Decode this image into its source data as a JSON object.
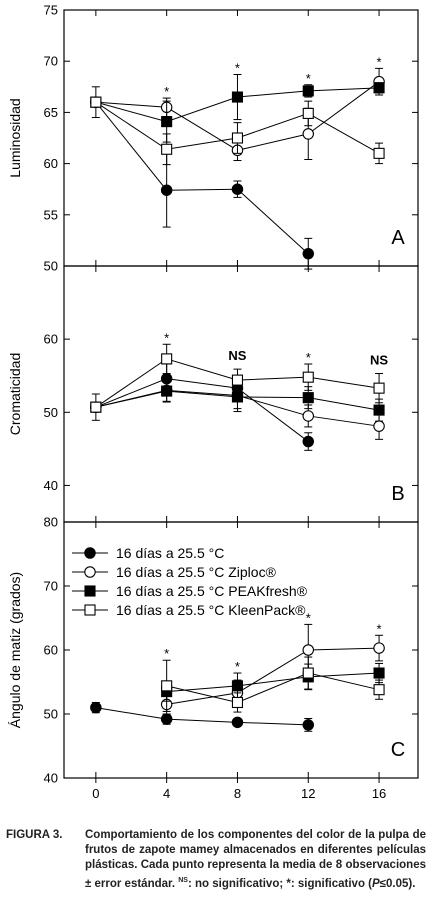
{
  "chart_data": [
    {
      "type": "line",
      "panel_letter": "A",
      "ylabel": "Luminosidad",
      "ylim": [
        50,
        75
      ],
      "yticks": [
        50,
        55,
        60,
        65,
        70,
        75
      ],
      "x": [
        0,
        4,
        8,
        12,
        16
      ],
      "markers": [
        {
          "x": 4,
          "text": "*"
        },
        {
          "x": 8,
          "text": "*"
        },
        {
          "x": 12,
          "text": "*"
        },
        {
          "x": 16,
          "text": "*"
        }
      ],
      "series": [
        {
          "name": "16 días a 25.5 °C",
          "marker": "filled-circle",
          "points": [
            {
              "x": 0,
              "y": 66.0,
              "err": 0
            },
            {
              "x": 4,
              "y": 57.4,
              "err": 3.6
            },
            {
              "x": 8,
              "y": 57.5,
              "err": 0.8
            },
            {
              "x": 12,
              "y": 51.2,
              "err": 1.5
            }
          ]
        },
        {
          "name": "16 días a 25.5 °C Ziploc®",
          "marker": "open-circle",
          "points": [
            {
              "x": 0,
              "y": 66.0,
              "err": 0
            },
            {
              "x": 4,
              "y": 65.5,
              "err": 0.9
            },
            {
              "x": 8,
              "y": 61.3,
              "err": 1.0
            },
            {
              "x": 12,
              "y": 62.9,
              "err": 2.5
            },
            {
              "x": 16,
              "y": 68.0,
              "err": 1.3
            }
          ]
        },
        {
          "name": "16 días a 25.5 °C PEAKfresh®",
          "marker": "filled-square",
          "points": [
            {
              "x": 0,
              "y": 66.0,
              "err": 1.5
            },
            {
              "x": 4,
              "y": 64.1,
              "err": 2.0
            },
            {
              "x": 8,
              "y": 66.5,
              "err": 2.2
            },
            {
              "x": 12,
              "y": 67.1,
              "err": 0.6
            },
            {
              "x": 16,
              "y": 67.4,
              "err": 0.5
            }
          ]
        },
        {
          "name": "16 días a 25.5 °C KleenPack®",
          "marker": "open-square",
          "points": [
            {
              "x": 0,
              "y": 66.0,
              "err": 0
            },
            {
              "x": 4,
              "y": 61.4,
              "err": 1.5
            },
            {
              "x": 8,
              "y": 62.5,
              "err": 1.5
            },
            {
              "x": 12,
              "y": 64.9,
              "err": 1.2
            },
            {
              "x": 16,
              "y": 61.0,
              "err": 1.0
            }
          ]
        }
      ]
    },
    {
      "type": "line",
      "panel_letter": "B",
      "ylabel": "Cromaticidad",
      "ylim": [
        35,
        70
      ],
      "yticks": [
        40,
        50,
        60
      ],
      "x": [
        0,
        4,
        8,
        12,
        16
      ],
      "markers": [
        {
          "x": 4,
          "text": "*"
        },
        {
          "x": 8,
          "text": "NS"
        },
        {
          "x": 12,
          "text": "*"
        },
        {
          "x": 16,
          "text": "NS"
        }
      ],
      "series": [
        {
          "name": "16 días a 25.5 °C",
          "marker": "filled-circle",
          "points": [
            {
              "x": 0,
              "y": 50.7,
              "err": 1.8
            },
            {
              "x": 4,
              "y": 54.6,
              "err": 2.0
            },
            {
              "x": 8,
              "y": 53.3,
              "err": 1.5
            },
            {
              "x": 12,
              "y": 46.0,
              "err": 1.2
            }
          ]
        },
        {
          "name": "16 días a 25.5 °C Ziploc®",
          "marker": "open-circle",
          "points": [
            {
              "x": 0,
              "y": 50.7,
              "err": 0
            },
            {
              "x": 4,
              "y": 53.0,
              "err": 1.5
            },
            {
              "x": 8,
              "y": 52.3,
              "err": 1.8
            },
            {
              "x": 12,
              "y": 49.5,
              "err": 1.5
            },
            {
              "x": 16,
              "y": 48.1,
              "err": 1.8
            }
          ]
        },
        {
          "name": "16 días a 25.5 °C PEAKfresh®",
          "marker": "filled-square",
          "points": [
            {
              "x": 0,
              "y": 50.7,
              "err": 0
            },
            {
              "x": 4,
              "y": 52.9,
              "err": 1.5
            },
            {
              "x": 8,
              "y": 52.1,
              "err": 2.0
            },
            {
              "x": 12,
              "y": 52.0,
              "err": 1.5
            },
            {
              "x": 16,
              "y": 50.3,
              "err": 1.5
            }
          ]
        },
        {
          "name": "16 días a 25.5 °C KleenPack®",
          "marker": "open-square",
          "points": [
            {
              "x": 0,
              "y": 50.7,
              "err": 0
            },
            {
              "x": 4,
              "y": 57.3,
              "err": 2.0
            },
            {
              "x": 8,
              "y": 54.4,
              "err": 1.5
            },
            {
              "x": 12,
              "y": 54.8,
              "err": 1.8
            },
            {
              "x": 16,
              "y": 53.3,
              "err": 2.0
            }
          ]
        }
      ]
    },
    {
      "type": "line",
      "panel_letter": "C",
      "ylabel": "Ángulo de matiz (grados)",
      "xlabel": "",
      "ylim": [
        40,
        80
      ],
      "yticks": [
        40,
        50,
        60,
        70,
        80
      ],
      "x": [
        0,
        4,
        8,
        12,
        16
      ],
      "xticks": [
        0,
        4,
        8,
        12,
        16
      ],
      "legend_position": "top-left",
      "markers": [
        {
          "x": 4,
          "text": "*"
        },
        {
          "x": 8,
          "text": "*"
        },
        {
          "x": 12,
          "text": "*"
        },
        {
          "x": 16,
          "text": "*"
        }
      ],
      "series": [
        {
          "name": "16 días a 25.5 °C",
          "marker": "filled-circle",
          "points": [
            {
              "x": 0,
              "y": 51.0,
              "err": 0.8
            },
            {
              "x": 4,
              "y": 49.2,
              "err": 0.8
            },
            {
              "x": 8,
              "y": 48.7,
              "err": 0.5
            },
            {
              "x": 12,
              "y": 48.3,
              "err": 1.0
            }
          ]
        },
        {
          "name": "16 días a 25.5 °C Ziploc®",
          "marker": "open-circle",
          "points": [
            {
              "x": 4,
              "y": 51.5,
              "err": 1.5
            },
            {
              "x": 8,
              "y": 53.3,
              "err": 2.0
            },
            {
              "x": 12,
              "y": 60.0,
              "err": 4.0
            },
            {
              "x": 16,
              "y": 60.3,
              "err": 2.0
            }
          ]
        },
        {
          "name": "16 días a 25.5 °C PEAKfresh®",
          "marker": "filled-square",
          "points": [
            {
              "x": 4,
              "y": 53.5,
              "err": 1.5
            },
            {
              "x": 8,
              "y": 54.4,
              "err": 2.0
            },
            {
              "x": 12,
              "y": 55.8,
              "err": 2.0
            },
            {
              "x": 16,
              "y": 56.4,
              "err": 1.5
            }
          ]
        },
        {
          "name": "16 días a 25.5 °C KleenPack®",
          "marker": "open-square",
          "points": [
            {
              "x": 4,
              "y": 54.4,
              "err": 4.0
            },
            {
              "x": 8,
              "y": 51.8,
              "err": 1.5
            },
            {
              "x": 12,
              "y": 56.4,
              "err": 2.5
            },
            {
              "x": 16,
              "y": 53.8,
              "err": 1.5
            }
          ]
        }
      ]
    }
  ],
  "caption": {
    "figure_label": "FIGURA 3.",
    "text_main": "Comportamiento de los componentes del color de la pulpa de frutos de zapote mamey almacenados en diferentes películas plásticas. Cada punto representa la media de 8 observaciones ± error estándar. ",
    "ns_sup": "NS",
    "text_ns": ": no significativo; *: significativo (",
    "p_italic": "P",
    "text_end": "≤0.05)."
  }
}
